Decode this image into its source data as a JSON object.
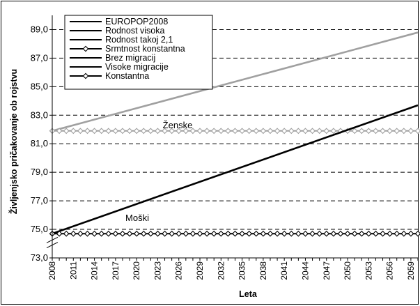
{
  "chart_data": {
    "type": "line",
    "ylabel": "Življenjsko pričakovanje ob rojstvu",
    "xlabel": "Leta",
    "ylim": [
      73,
      90
    ],
    "y_ticks": [
      "73,0",
      "75,0",
      "77,0",
      "79,0",
      "81,0",
      "83,0",
      "85,0",
      "87,0",
      "89,0"
    ],
    "y_tick_values": [
      73,
      75,
      77,
      79,
      81,
      83,
      85,
      87,
      89
    ],
    "x_tick_labels": [
      "2008",
      "2011",
      "2014",
      "2017",
      "2020",
      "2023",
      "2026",
      "2029",
      "2032",
      "2035",
      "2038",
      "2041",
      "2044",
      "2047",
      "2050",
      "2053",
      "2056",
      "2059"
    ],
    "x_range": [
      2008,
      2060
    ],
    "grid": "horizontal dashed",
    "legend_placement": "top-left",
    "legend": [
      {
        "name": "EUROPOP2008",
        "marker": "none"
      },
      {
        "name": "Rodnost visoka",
        "marker": "none"
      },
      {
        "name": "Rodnost takoj 2,1",
        "marker": "none"
      },
      {
        "name": "Srmtnost konstantna",
        "marker": "diamond"
      },
      {
        "name": "Brez migracij",
        "marker": "none"
      },
      {
        "name": "Visoke migracije",
        "marker": "none"
      },
      {
        "name": "Konstantna",
        "marker": "diamond"
      }
    ],
    "annotations": {
      "zenske": "Ženske",
      "moski": "Moški"
    },
    "series": [
      {
        "group": "Ženske",
        "kind": "projected",
        "color": "#a0a0a0",
        "x": [
          2008,
          2060
        ],
        "y": [
          81.9,
          88.8
        ],
        "markers": false
      },
      {
        "group": "Ženske",
        "kind": "constant",
        "color": "#a0a0a0",
        "x": [
          2008,
          2060
        ],
        "y": [
          81.9,
          81.9
        ],
        "markers": true
      },
      {
        "group": "Moški",
        "kind": "projected",
        "color": "#000000",
        "x": [
          2008,
          2060
        ],
        "y": [
          74.7,
          83.7
        ],
        "markers": false
      },
      {
        "group": "Moški",
        "kind": "constant",
        "color": "#000000",
        "x": [
          2008,
          2060
        ],
        "y": [
          74.7,
          74.7
        ],
        "markers": true
      }
    ]
  }
}
